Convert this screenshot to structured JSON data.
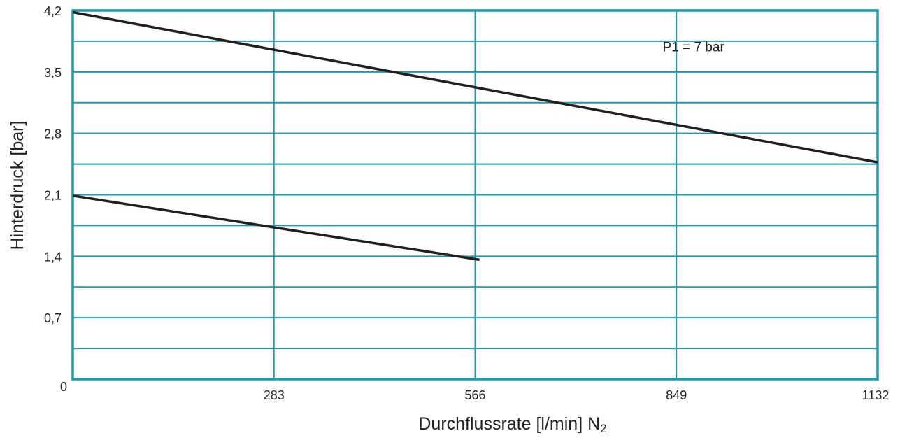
{
  "chart_data": {
    "type": "line",
    "xlabel": "Durchflussrate [l/min] N",
    "xlabel_subscript": "2",
    "ylabel": "Hinterdruck [bar]",
    "xlim": [
      0,
      1132
    ],
    "ylim": [
      0,
      4.2
    ],
    "x_ticks": [
      283,
      566,
      849,
      1132
    ],
    "x_tick_labels": [
      "283",
      "566",
      "849",
      "1132"
    ],
    "y_ticks": [
      0,
      0.7,
      1.4,
      2.1,
      2.8,
      3.5,
      4.2
    ],
    "y_tick_labels": [
      "0",
      "0,7",
      "1,4",
      "2,1",
      "2,8",
      "3,5",
      "4,2"
    ],
    "grid": true,
    "annotations": [
      {
        "text": "P1 = 7 bar",
        "x": 810,
        "y": 3.75
      }
    ],
    "series": [
      {
        "x": [
          0,
          1132
        ],
        "y": [
          4.18,
          2.47
        ]
      },
      {
        "x": [
          0,
          572
        ],
        "y": [
          2.09,
          1.36
        ]
      }
    ],
    "colors": {
      "grid": "#1e9aaa",
      "line": "#231f20",
      "text": "#222222"
    }
  }
}
